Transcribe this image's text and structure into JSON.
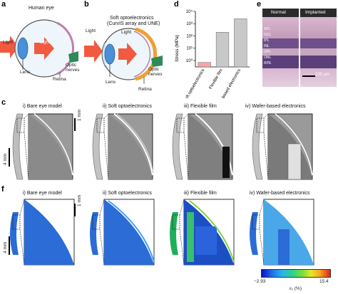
{
  "panel_a": {
    "label": "a",
    "title": "Human eye",
    "light_left": "Light",
    "light_center": "Light",
    "lens": "Lens",
    "retina": "Retina",
    "optic_nerves": "Optic\nnerves"
  },
  "panel_b": {
    "label": "b",
    "title_line1": "Soft  optoelectronics",
    "title_line2": "(CurvIS array and UNE)",
    "light_left": "Light",
    "light_center": "Light",
    "lens": "Lens",
    "retina": "Retina",
    "optic_nerves": "Optic\nnerves"
  },
  "panel_d": {
    "label": "d",
    "chart_data": {
      "type": "bar",
      "categories": [
        "Soft optoelectronics",
        "Flexible film",
        "Wafer-based electronics"
      ],
      "values": [
        0.7,
        200,
        2500
      ],
      "ylabel": "Stress (MPa)",
      "yscale": "log",
      "ylim": [
        0.3,
        10000
      ],
      "yticks": [
        "10⁰",
        "10¹",
        "10²",
        "10³",
        "10⁴"
      ],
      "colors": [
        "#f4a6a6",
        "#c8c8c8",
        "#c8c8c8"
      ]
    },
    "cat_labels": [
      "Soft\noptoelectronics",
      "Flexible\nfilm",
      "Wafer-based\nelectronics"
    ]
  },
  "panel_e": {
    "label": "e",
    "normal": "Normal",
    "implanted": "Implanted",
    "layers": [
      "NFL",
      "GCL",
      "IPL",
      "INL",
      "OPL",
      "ONL",
      "RPE"
    ],
    "scalebar": "100 μm"
  },
  "panel_c": {
    "label": "c",
    "titles": [
      "i) Bare eye model",
      "ii) Soft optoelectronics",
      "iii) Flexible film",
      "iv) Wafer-based electronics"
    ],
    "scale_4mm": "4 mm",
    "scale_1mm": "1 mm"
  },
  "panel_f": {
    "label": "f",
    "titles": [
      "i) Bare eye model",
      "ii) Soft optoelectronics",
      "iii) Flexible film",
      "iv) Wafer-based electronics"
    ],
    "scale_4mm": "4 mm",
    "scale_1mm": "1 mm",
    "colorbar_min": "−2.93",
    "colorbar_max": "15.4",
    "colorbar_label": "ε₁ (%)"
  },
  "colors": {
    "arrow_red": "#f15a40",
    "lens_blue": "#4a90d9",
    "retina_pink": "#c07fa8",
    "nerve_green": "#2e8b57",
    "device_orange": "#f0a030",
    "histology_bg": "#b38fb0",
    "fem_blue": "#2b6cd6"
  }
}
